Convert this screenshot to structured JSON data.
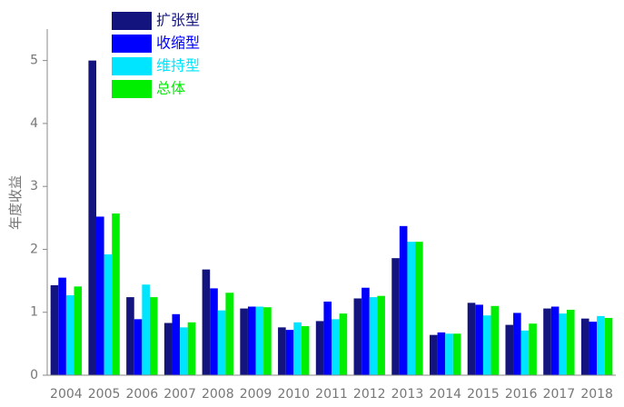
{
  "chart_data": {
    "type": "bar",
    "y_label": "年度收益",
    "categories": [
      "2004",
      "2005",
      "2006",
      "2007",
      "2008",
      "2009",
      "2010",
      "2011",
      "2012",
      "2013",
      "2014",
      "2015",
      "2016",
      "2017",
      "2018"
    ],
    "series": [
      {
        "name": "扩张型",
        "color": "#14147e",
        "values": [
          1.43,
          5.0,
          1.24,
          0.83,
          1.68,
          1.06,
          0.76,
          0.86,
          1.22,
          1.86,
          0.64,
          1.15,
          0.8,
          1.06,
          0.9
        ]
      },
      {
        "name": "收缩型",
        "color": "#0000ff",
        "values": [
          1.55,
          2.52,
          0.89,
          0.97,
          1.38,
          1.09,
          0.72,
          1.17,
          1.39,
          2.37,
          0.68,
          1.12,
          0.99,
          1.09,
          0.85
        ]
      },
      {
        "name": "维持型",
        "color": "#00e5ff",
        "values": [
          1.27,
          1.92,
          1.44,
          0.76,
          1.03,
          1.09,
          0.84,
          0.89,
          1.24,
          2.12,
          0.66,
          0.95,
          0.71,
          0.98,
          0.94
        ]
      },
      {
        "name": "总体",
        "color": "#00ee00",
        "values": [
          1.41,
          2.57,
          1.24,
          0.84,
          1.31,
          1.08,
          0.78,
          0.98,
          1.26,
          2.12,
          0.66,
          1.1,
          0.82,
          1.04,
          0.91
        ]
      }
    ],
    "ylim": [
      0,
      5.5
    ],
    "yticks": [
      0,
      1,
      2,
      3,
      4,
      5
    ],
    "legend": "upper-left"
  }
}
